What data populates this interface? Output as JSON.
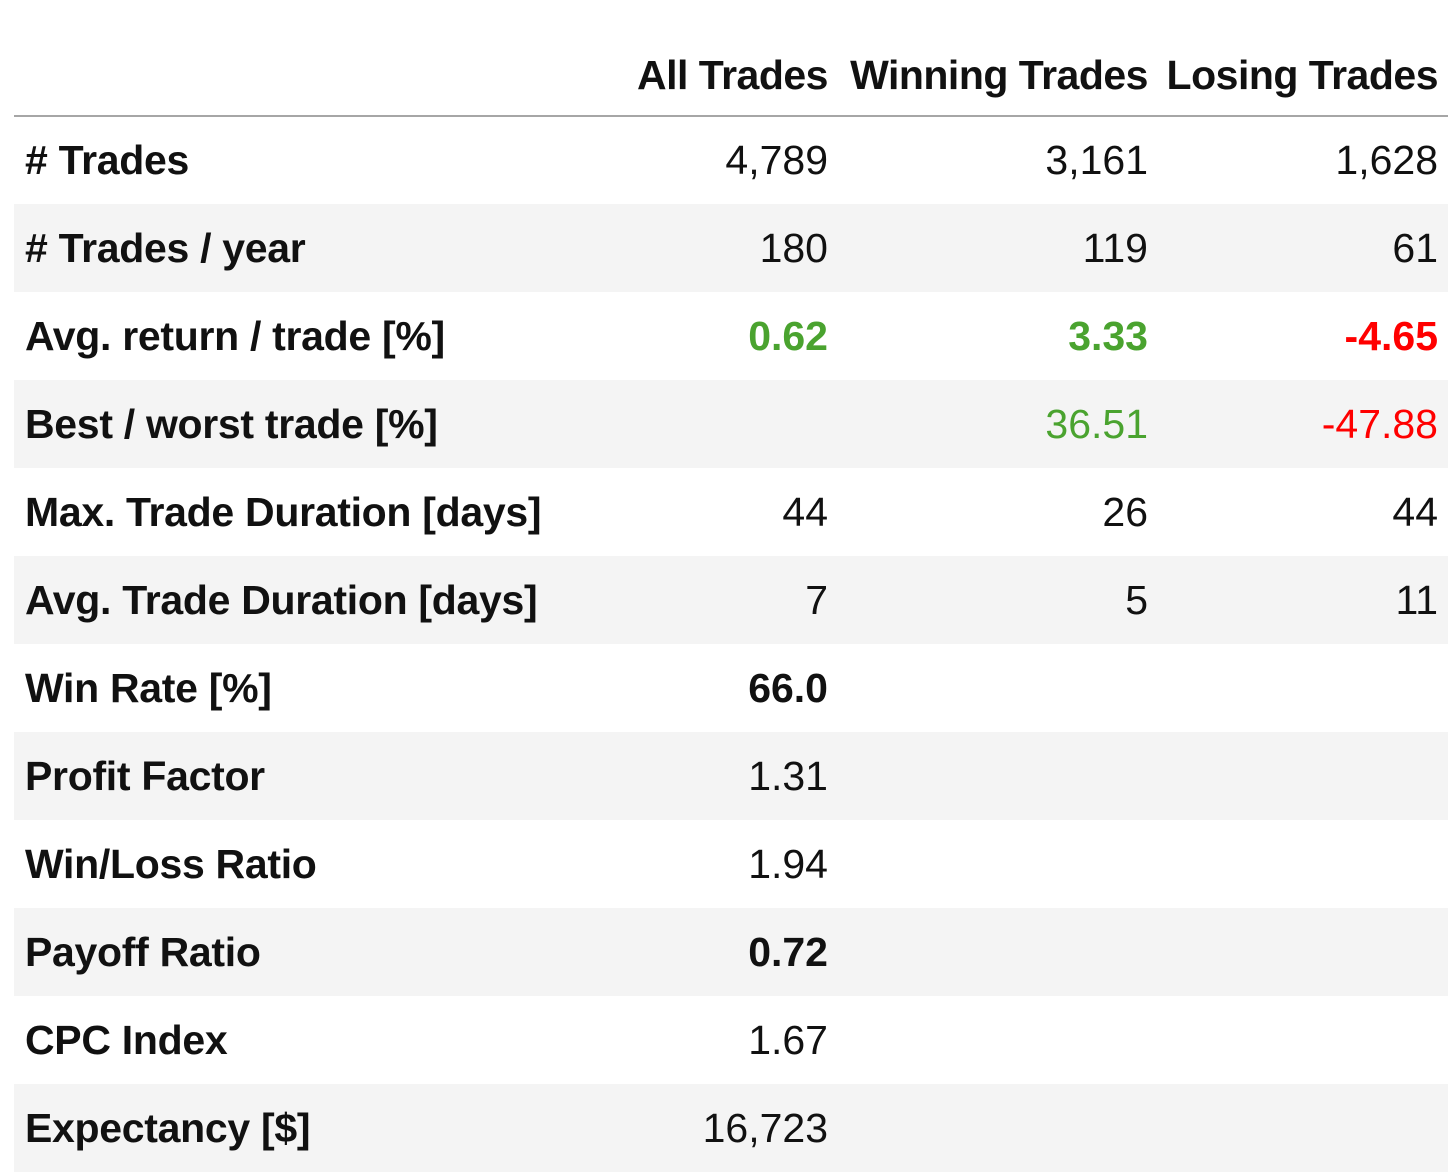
{
  "columns": [
    "",
    "All Trades",
    "Winning Trades",
    "Losing Trades"
  ],
  "colors": {
    "positive": "#4aa32f",
    "negative": "#ff0000",
    "row_stripe": "#f4f4f4",
    "header_rule": "#a6a6a6"
  },
  "rows": [
    {
      "label": "# Trades",
      "all": "4,789",
      "win": "3,161",
      "lose": "1,628"
    },
    {
      "label": "# Trades / year",
      "all": "180",
      "win": "119",
      "lose": "61"
    },
    {
      "label": "Avg. return / trade [%]",
      "all": "0.62",
      "win": "3.33",
      "lose": "-4.65"
    },
    {
      "label": "Best / worst trade [%]",
      "all": "",
      "win": "36.51",
      "lose": "-47.88"
    },
    {
      "label": "Max. Trade Duration [days]",
      "all": "44",
      "win": "26",
      "lose": "44"
    },
    {
      "label": "Avg. Trade Duration [days]",
      "all": "7",
      "win": "5",
      "lose": "11"
    },
    {
      "label": "Win Rate [%]",
      "all": "66.0",
      "win": "",
      "lose": ""
    },
    {
      "label": "Profit Factor",
      "all": "1.31",
      "win": "",
      "lose": ""
    },
    {
      "label": "Win/Loss Ratio",
      "all": "1.94",
      "win": "",
      "lose": ""
    },
    {
      "label": "Payoff Ratio",
      "all": "0.72",
      "win": "",
      "lose": ""
    },
    {
      "label": "CPC Index",
      "all": "1.67",
      "win": "",
      "lose": ""
    },
    {
      "label": "Expectancy [$]",
      "all": "16,723",
      "win": "",
      "lose": ""
    }
  ]
}
